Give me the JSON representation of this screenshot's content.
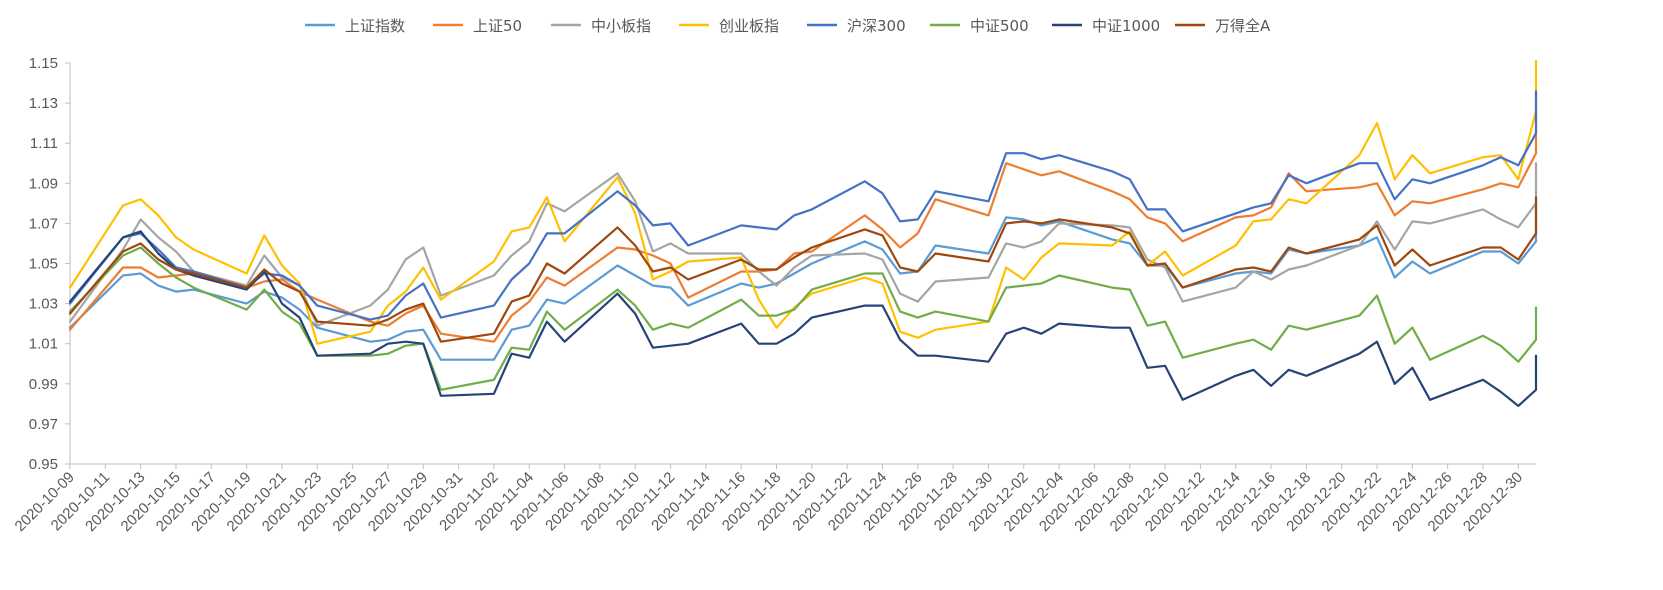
{
  "chart_data": {
    "type": "line",
    "ylim": [
      0.95,
      1.15
    ],
    "y_ticks": [
      "0.95",
      "0.97",
      "0.99",
      "1.01",
      "1.03",
      "1.05",
      "1.07",
      "1.09",
      "1.11",
      "1.13",
      "1.15"
    ],
    "grid": false,
    "legend_position": "top",
    "x": [
      "2020-10-09",
      "2020-10-12",
      "2020-10-13",
      "2020-10-14",
      "2020-10-15",
      "2020-10-16",
      "2020-10-19",
      "2020-10-20",
      "2020-10-21",
      "2020-10-22",
      "2020-10-23",
      "2020-10-26",
      "2020-10-27",
      "2020-10-28",
      "2020-10-29",
      "2020-10-30",
      "2020-11-02",
      "2020-11-03",
      "2020-11-04",
      "2020-11-05",
      "2020-11-06",
      "2020-11-09",
      "2020-11-10",
      "2020-11-11",
      "2020-11-12",
      "2020-11-13",
      "2020-11-16",
      "2020-11-17",
      "2020-11-18",
      "2020-11-19",
      "2020-11-20",
      "2020-11-23",
      "2020-11-24",
      "2020-11-25",
      "2020-11-26",
      "2020-11-27",
      "2020-11-30",
      "2020-12-01",
      "2020-12-02",
      "2020-12-03",
      "2020-12-04",
      "2020-12-07",
      "2020-12-08",
      "2020-12-09",
      "2020-12-10",
      "2020-12-11",
      "2020-12-14",
      "2020-12-15",
      "2020-12-16",
      "2020-12-17",
      "2020-12-18",
      "2020-12-21",
      "2020-12-22",
      "2020-12-23",
      "2020-12-24",
      "2020-12-25",
      "2020-12-28",
      "2020-12-29",
      "2020-12-30",
      "2020-12-31"
    ],
    "x_tick_labels": [
      "2020-10-09",
      "2020-10-11",
      "2020-10-13",
      "2020-10-15",
      "2020-10-17",
      "2020-10-19",
      "2020-10-21",
      "2020-10-23",
      "2020-10-25",
      "2020-10-27",
      "2020-10-29",
      "2020-10-31",
      "2020-11-02",
      "2020-11-04",
      "2020-11-06",
      "2020-11-08",
      "2020-11-10",
      "2020-11-12",
      "2020-11-14",
      "2020-11-16",
      "2020-11-18",
      "2020-11-20",
      "2020-11-22",
      "2020-11-24",
      "2020-11-26",
      "2020-11-28",
      "2020-11-30",
      "2020-12-02",
      "2020-12-04",
      "2020-12-06",
      "2020-12-08",
      "2020-12-10",
      "2020-12-12",
      "2020-12-14",
      "2020-12-16",
      "2020-12-18",
      "2020-12-20",
      "2020-12-22",
      "2020-12-24",
      "2020-12-26",
      "2020-12-28",
      "2020-12-30"
    ],
    "series": [
      {
        "name": "上证指数",
        "color": "#5b9bd5",
        "values": [
          1.018,
          1.044,
          1.045,
          1.039,
          1.036,
          1.037,
          1.03,
          1.036,
          1.033,
          1.027,
          1.018,
          1.011,
          1.012,
          1.016,
          1.017,
          1.002,
          1.002,
          1.017,
          1.019,
          1.032,
          1.03,
          1.049,
          1.044,
          1.039,
          1.038,
          1.029,
          1.04,
          1.038,
          1.04,
          1.045,
          1.05,
          1.061,
          1.057,
          1.045,
          1.046,
          1.059,
          1.055,
          1.073,
          1.072,
          1.069,
          1.071,
          1.062,
          1.06,
          1.049,
          1.049,
          1.038,
          1.045,
          1.046,
          1.045,
          1.057,
          1.055,
          1.059,
          1.063,
          1.043,
          1.051,
          1.045,
          1.056,
          1.056,
          1.05,
          1.061
        ]
      },
      {
        "name": "上证50",
        "color": "#ed7d31",
        "values": [
          1.017,
          1.048,
          1.048,
          1.043,
          1.044,
          1.045,
          1.038,
          1.041,
          1.042,
          1.036,
          1.032,
          1.021,
          1.019,
          1.025,
          1.029,
          1.015,
          1.011,
          1.024,
          1.031,
          1.043,
          1.039,
          1.058,
          1.057,
          1.054,
          1.05,
          1.033,
          1.046,
          1.046,
          1.047,
          1.055,
          1.056,
          1.074,
          1.067,
          1.058,
          1.065,
          1.082,
          1.074,
          1.1,
          1.097,
          1.094,
          1.096,
          1.086,
          1.082,
          1.073,
          1.07,
          1.061,
          1.073,
          1.074,
          1.078,
          1.095,
          1.086,
          1.088,
          1.09,
          1.074,
          1.081,
          1.08,
          1.087,
          1.09,
          1.088,
          1.105
        ]
      },
      {
        "name": "中小板指",
        "color": "#a5a5a5",
        "values": [
          1.021,
          1.057,
          1.072,
          1.063,
          1.056,
          1.046,
          1.039,
          1.054,
          1.043,
          1.039,
          1.019,
          1.029,
          1.037,
          1.052,
          1.058,
          1.034,
          1.044,
          1.054,
          1.061,
          1.08,
          1.076,
          1.095,
          1.081,
          1.056,
          1.06,
          1.055,
          1.055,
          1.046,
          1.039,
          1.048,
          1.054,
          1.055,
          1.052,
          1.035,
          1.031,
          1.041,
          1.043,
          1.06,
          1.058,
          1.061,
          1.07,
          1.069,
          1.068,
          1.052,
          1.048,
          1.031,
          1.038,
          1.046,
          1.042,
          1.047,
          1.049,
          1.059,
          1.071,
          1.057,
          1.071,
          1.07,
          1.077,
          1.072,
          1.068,
          1.08
        ]
      },
      {
        "name": "创业板指",
        "color": "#ffc000",
        "values": [
          1.038,
          1.079,
          1.082,
          1.074,
          1.063,
          1.057,
          1.045,
          1.064,
          1.049,
          1.04,
          1.01,
          1.016,
          1.029,
          1.036,
          1.048,
          1.032,
          1.051,
          1.066,
          1.068,
          1.083,
          1.061,
          1.093,
          1.075,
          1.042,
          1.046,
          1.051,
          1.053,
          1.032,
          1.018,
          1.028,
          1.035,
          1.043,
          1.04,
          1.016,
          1.013,
          1.017,
          1.021,
          1.048,
          1.042,
          1.053,
          1.06,
          1.059,
          1.066,
          1.049,
          1.056,
          1.044,
          1.059,
          1.071,
          1.072,
          1.082,
          1.08,
          1.104,
          1.12,
          1.092,
          1.104,
          1.095,
          1.103,
          1.104,
          1.092,
          1.126
        ]
      },
      {
        "name": "沪深300",
        "color": "#4472c4",
        "values": [
          1.03,
          1.063,
          1.065,
          1.057,
          1.048,
          1.046,
          1.038,
          1.045,
          1.044,
          1.039,
          1.029,
          1.022,
          1.024,
          1.034,
          1.04,
          1.023,
          1.029,
          1.042,
          1.05,
          1.065,
          1.065,
          1.086,
          1.079,
          1.069,
          1.07,
          1.059,
          1.069,
          1.068,
          1.067,
          1.074,
          1.077,
          1.091,
          1.085,
          1.071,
          1.072,
          1.086,
          1.081,
          1.105,
          1.105,
          1.102,
          1.104,
          1.096,
          1.092,
          1.077,
          1.077,
          1.066,
          1.075,
          1.078,
          1.08,
          1.094,
          1.09,
          1.1,
          1.1,
          1.082,
          1.092,
          1.09,
          1.099,
          1.103,
          1.099,
          1.115
        ]
      },
      {
        "name": "中证500",
        "color": "#70ad47",
        "values": [
          1.026,
          1.054,
          1.058,
          1.05,
          1.043,
          1.038,
          1.027,
          1.037,
          1.026,
          1.02,
          1.004,
          1.004,
          1.005,
          1.009,
          1.01,
          0.987,
          0.992,
          1.008,
          1.007,
          1.026,
          1.017,
          1.037,
          1.029,
          1.017,
          1.02,
          1.018,
          1.032,
          1.024,
          1.024,
          1.027,
          1.037,
          1.045,
          1.045,
          1.026,
          1.023,
          1.026,
          1.021,
          1.038,
          1.039,
          1.04,
          1.044,
          1.038,
          1.037,
          1.019,
          1.021,
          1.003,
          1.01,
          1.012,
          1.007,
          1.019,
          1.017,
          1.024,
          1.034,
          1.01,
          1.018,
          1.002,
          1.014,
          1.009,
          1.001,
          1.012
        ]
      },
      {
        "name": "中证1000",
        "color": "#264478",
        "values": [
          1.031,
          1.063,
          1.066,
          1.055,
          1.047,
          1.044,
          1.037,
          1.046,
          1.03,
          1.023,
          1.004,
          1.005,
          1.01,
          1.011,
          1.01,
          0.984,
          0.985,
          1.005,
          1.003,
          1.021,
          1.011,
          1.035,
          1.025,
          1.008,
          1.009,
          1.01,
          1.02,
          1.01,
          1.01,
          1.015,
          1.023,
          1.029,
          1.029,
          1.012,
          1.004,
          1.004,
          1.001,
          1.015,
          1.018,
          1.015,
          1.02,
          1.018,
          1.018,
          0.998,
          0.999,
          0.982,
          0.994,
          0.997,
          0.989,
          0.997,
          0.994,
          1.005,
          1.011,
          0.99,
          0.998,
          0.982,
          0.992,
          0.986,
          0.979,
          0.987
        ]
      },
      {
        "name": "万得全A",
        "color": "#9e480e",
        "values": [
          1.025,
          1.056,
          1.06,
          1.052,
          1.047,
          1.045,
          1.038,
          1.047,
          1.04,
          1.036,
          1.021,
          1.019,
          1.022,
          1.027,
          1.03,
          1.011,
          1.015,
          1.031,
          1.034,
          1.05,
          1.045,
          1.068,
          1.059,
          1.046,
          1.048,
          1.042,
          1.052,
          1.047,
          1.047,
          1.053,
          1.058,
          1.067,
          1.064,
          1.048,
          1.046,
          1.055,
          1.051,
          1.07,
          1.071,
          1.07,
          1.072,
          1.068,
          1.065,
          1.049,
          1.05,
          1.038,
          1.047,
          1.048,
          1.046,
          1.058,
          1.055,
          1.062,
          1.069,
          1.049,
          1.057,
          1.049,
          1.058,
          1.058,
          1.052,
          1.065
        ]
      }
    ],
    "final_values": [
      1.08,
      1.126,
      1.1,
      1.151,
      1.136,
      1.028,
      1.004,
      1.083
    ]
  }
}
